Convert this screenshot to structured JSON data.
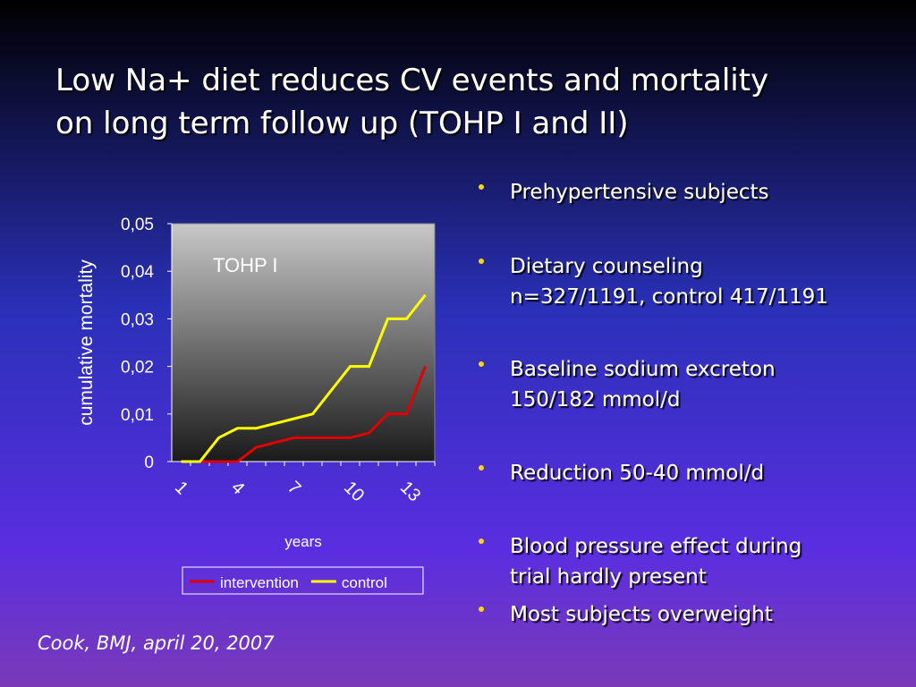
{
  "slide": {
    "title": [
      "Low Na+ diet reduces CV events and mortality",
      "on long term follow up (TOHP I and II)"
    ],
    "bullets": [
      [
        "Prehypertensive subjects"
      ],
      [
        "Dietary counseling",
        "n=327/1191, control 417/1191"
      ],
      [
        "Baseline sodium excreton",
        "150/182 mmol/d"
      ],
      [
        "Reduction 50-40 mmol/d"
      ],
      [
        "Blood pressure effect during",
        "trial hardly present"
      ],
      [
        "Most subjects overweight"
      ]
    ],
    "citation": "Cook, BMJ, april 20, 2007"
  },
  "chart_data": {
    "type": "line",
    "annotation": "TOHP I",
    "ylabel": "cumulative mortality",
    "xlabel": "years",
    "categories": [
      "1",
      null,
      null,
      "4",
      null,
      null,
      "7",
      null,
      null,
      "10",
      null,
      null,
      "13",
      null
    ],
    "series": [
      {
        "name": "intervention",
        "color": "#e00000",
        "values": [
          0,
          0,
          0,
          0,
          0.003,
          0.004,
          0.005,
          0.005,
          0.005,
          0.005,
          0.006,
          0.01,
          0.01,
          0.02
        ]
      },
      {
        "name": "control",
        "color": "#ffff00",
        "values": [
          0,
          0,
          0.005,
          0.007,
          0.007,
          0.008,
          0.009,
          0.01,
          0.015,
          0.02,
          0.02,
          0.03,
          0.03,
          0.035
        ]
      }
    ],
    "ylim": [
      0,
      0.05
    ],
    "yticks": [
      0,
      {
        "value": 0.01,
        "label": "0,01"
      },
      {
        "value": 0.02,
        "label": "0,02"
      },
      {
        "value": 0.03,
        "label": "0,03"
      },
      {
        "value": 0.04,
        "label": "0,04"
      },
      {
        "value": 0.05,
        "label": "0,05"
      }
    ]
  }
}
